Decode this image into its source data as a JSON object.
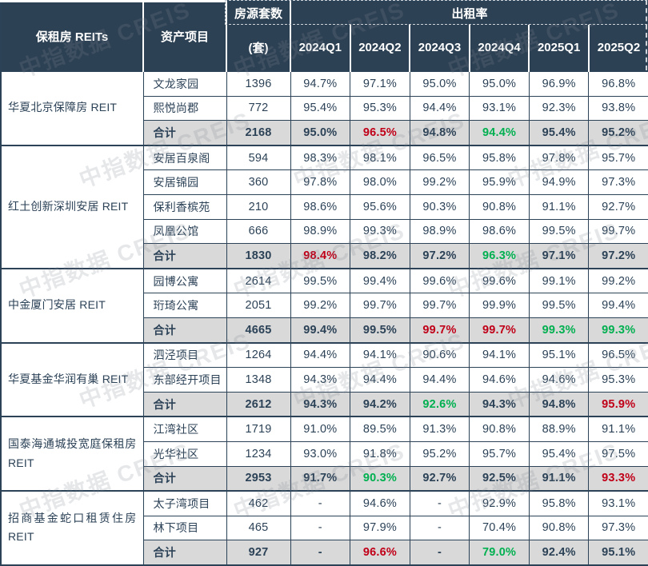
{
  "watermark": "中指数据 CREIS",
  "colors": {
    "header_bg": "#2d4154",
    "body_text": "#2c4257",
    "total_row_bg": "#d9d9d9",
    "border": "#2c4257",
    "red": "#c00018",
    "green": "#00b050"
  },
  "chart_data": {
    "type": "table",
    "header": {
      "reits_col": "保租房 REITs",
      "asset_col": "资产项目",
      "units_col_line1": "房源套数",
      "units_col_line2": "(套)",
      "occupancy_group": "出租率",
      "quarters": [
        "2024Q1",
        "2024Q2",
        "2024Q3",
        "2024Q4",
        "2025Q1",
        "2025Q2"
      ]
    },
    "total_label": "合计",
    "groups": [
      {
        "reit": "华夏北京保障房 REIT",
        "projects": [
          {
            "name": "文龙家园",
            "units": "1396",
            "rates": [
              "94.7%",
              "97.1%",
              "95.0%",
              "95.0%",
              "96.9%",
              "96.8%"
            ]
          },
          {
            "name": "熙悦尚郡",
            "units": "772",
            "rates": [
              "95.4%",
              "95.3%",
              "94.4%",
              "93.1%",
              "92.3%",
              "93.8%"
            ]
          }
        ],
        "total": {
          "units": "2168",
          "rates": [
            {
              "v": "95.0%"
            },
            {
              "v": "96.5%",
              "c": "red"
            },
            {
              "v": "94.8%"
            },
            {
              "v": "94.4%",
              "c": "green"
            },
            {
              "v": "95.4%"
            },
            {
              "v": "95.2%"
            }
          ]
        }
      },
      {
        "reit": "红土创新深圳安居 REIT",
        "projects": [
          {
            "name": "安居百泉阁",
            "units": "594",
            "rates": [
              "98.3%",
              "98.1%",
              "96.5%",
              "95.8%",
              "97.8%",
              "95.7%"
            ]
          },
          {
            "name": "安居锦园",
            "units": "360",
            "rates": [
              "97.8%",
              "98.0%",
              "99.2%",
              "95.9%",
              "94.9%",
              "97.3%"
            ]
          },
          {
            "name": "保利香槟苑",
            "units": "210",
            "rates": [
              "98.6%",
              "95.6%",
              "90.3%",
              "90.8%",
              "91.1%",
              "92.7%"
            ]
          },
          {
            "name": "凤凰公馆",
            "units": "666",
            "rates": [
              "98.9%",
              "99.3%",
              "98.9%",
              "98.6%",
              "99.5%",
              "99.7%"
            ]
          }
        ],
        "total": {
          "units": "1830",
          "rates": [
            {
              "v": "98.4%",
              "c": "red"
            },
            {
              "v": "98.2%"
            },
            {
              "v": "97.2%"
            },
            {
              "v": "96.3%",
              "c": "green"
            },
            {
              "v": "97.1%"
            },
            {
              "v": "97.2%"
            }
          ]
        }
      },
      {
        "reit": "中金厦门安居 REIT",
        "projects": [
          {
            "name": "园博公寓",
            "units": "2614",
            "rates": [
              "99.5%",
              "99.4%",
              "99.6%",
              "99.6%",
              "99.1%",
              "99.2%"
            ]
          },
          {
            "name": "珩琦公寓",
            "units": "2051",
            "rates": [
              "99.2%",
              "99.7%",
              "99.7%",
              "99.9%",
              "99.5%",
              "99.4%"
            ]
          }
        ],
        "total": {
          "units": "4665",
          "rates": [
            {
              "v": "99.4%"
            },
            {
              "v": "99.5%"
            },
            {
              "v": "99.7%",
              "c": "red"
            },
            {
              "v": "99.7%",
              "c": "red"
            },
            {
              "v": "99.3%",
              "c": "green"
            },
            {
              "v": "99.3%",
              "c": "green"
            }
          ]
        }
      },
      {
        "reit": "华夏基金华润有巢 REIT",
        "projects": [
          {
            "name": "泗泾项目",
            "units": "1264",
            "rates": [
              "94.4%",
              "94.1%",
              "90.6%",
              "94.1%",
              "95.1%",
              "96.5%"
            ]
          },
          {
            "name": "东部经开项目",
            "units": "1348",
            "rates": [
              "94.3%",
              "94.4%",
              "94.4%",
              "94.6%",
              "94.6%",
              "95.3%"
            ]
          }
        ],
        "total": {
          "units": "2612",
          "rates": [
            {
              "v": "94.3%"
            },
            {
              "v": "94.2%"
            },
            {
              "v": "92.6%",
              "c": "green"
            },
            {
              "v": "94.3%"
            },
            {
              "v": "94.8%"
            },
            {
              "v": "95.9%",
              "c": "red"
            }
          ]
        }
      },
      {
        "reit": "国泰海通城投宽庭保租房 REIT",
        "projects": [
          {
            "name": "江湾社区",
            "units": "1719",
            "rates": [
              "91.0%",
              "89.5%",
              "91.3%",
              "90.8%",
              "88.9%",
              "91.1%"
            ]
          },
          {
            "name": "光华社区",
            "units": "1234",
            "rates": [
              "93.0%",
              "91.8%",
              "95.2%",
              "95.7%",
              "95.4%",
              "97.5%"
            ]
          }
        ],
        "total": {
          "units": "2953",
          "rates": [
            {
              "v": "91.7%"
            },
            {
              "v": "90.3%",
              "c": "green"
            },
            {
              "v": "92.7%"
            },
            {
              "v": "92.5%"
            },
            {
              "v": "91.1%"
            },
            {
              "v": "93.3%",
              "c": "red"
            }
          ]
        }
      },
      {
        "reit": "招商基金蛇口租赁住房 REIT",
        "projects": [
          {
            "name": "太子湾项目",
            "units": "462",
            "rates": [
              "-",
              "94.6%",
              "-",
              "92.9%",
              "95.8%",
              "93.1%"
            ]
          },
          {
            "name": "林下项目",
            "units": "465",
            "rates": [
              "-",
              "97.9%",
              "-",
              "70.4%",
              "90.8%",
              "97.3%"
            ]
          }
        ],
        "total": {
          "units": "927",
          "rates": [
            {
              "v": "-"
            },
            {
              "v": "96.6%",
              "c": "red"
            },
            {
              "v": "-"
            },
            {
              "v": "79.0%",
              "c": "green"
            },
            {
              "v": "92.4%"
            },
            {
              "v": "95.1%"
            }
          ]
        }
      }
    ]
  }
}
